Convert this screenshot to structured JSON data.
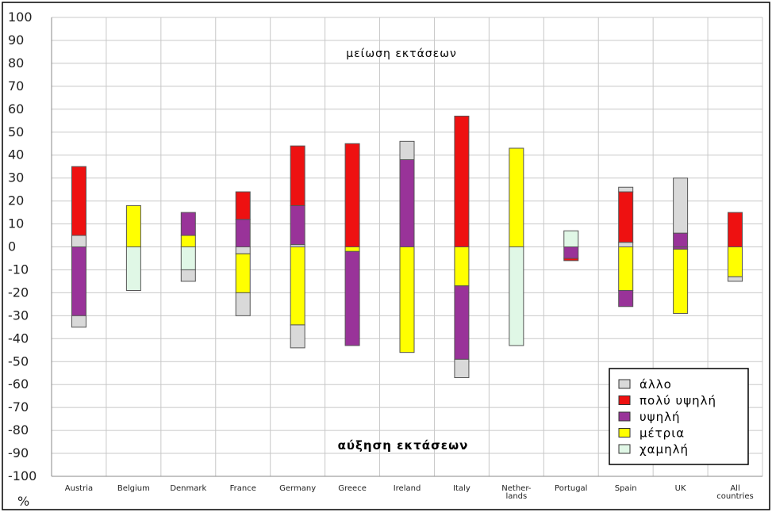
{
  "chart_data": {
    "type": "bar",
    "stacked": true,
    "ylabel": "%",
    "ylim": [
      -100,
      100
    ],
    "yticks": [
      100,
      90,
      80,
      70,
      60,
      50,
      40,
      30,
      20,
      10,
      0,
      -10,
      -20,
      -30,
      -40,
      -50,
      -60,
      -70,
      -80,
      -90,
      -100
    ],
    "grid": true,
    "categories": [
      [
        "Austria"
      ],
      [
        "Belgium"
      ],
      [
        "Denmark"
      ],
      [
        "France"
      ],
      [
        "Germany"
      ],
      [
        "Greece"
      ],
      [
        "Ireland"
      ],
      [
        "Italy"
      ],
      [
        "Nether-",
        "lands"
      ],
      [
        "Portugal"
      ],
      [
        "Spain"
      ],
      [
        "UK"
      ],
      [
        "All",
        "countries"
      ]
    ],
    "annotations": {
      "top": "μείωση εκτάσεων",
      "bottom": "αύξηση εκτάσεων"
    },
    "legend": {
      "position": "bottom-right",
      "items": [
        {
          "name": "άλλο",
          "color": "#d9d9d9"
        },
        {
          "name": "πολύ υψηλή",
          "color": "#ee1111"
        },
        {
          "name": "υψηλή",
          "color": "#993399"
        },
        {
          "name": "μέτρια",
          "color": "#ffff00"
        },
        {
          "name": "χαμηλή",
          "color": "#e0f7e6"
        }
      ]
    },
    "colors": {
      "άλλο": "#d9d9d9",
      "πολύ υψηλή": "#ee1111",
      "υψηλή": "#993399",
      "μέτρια": "#ffff00",
      "χαμηλή": "#e0f7e6"
    },
    "segments": [
      {
        "category": "Austria",
        "series": "άλλο",
        "from": 0,
        "to": 5
      },
      {
        "category": "Austria",
        "series": "πολύ υψηλή",
        "from": 5,
        "to": 35
      },
      {
        "category": "Austria",
        "series": "υψηλή",
        "from": -30,
        "to": 0
      },
      {
        "category": "Austria",
        "series": "άλλο",
        "from": -35,
        "to": -30
      },
      {
        "category": "Belgium",
        "series": "μέτρια",
        "from": 0,
        "to": 18
      },
      {
        "category": "Belgium",
        "series": "χαμηλή",
        "from": -19,
        "to": 0
      },
      {
        "category": "Denmark",
        "series": "μέτρια",
        "from": 0,
        "to": 5
      },
      {
        "category": "Denmark",
        "series": "υψηλή",
        "from": 5,
        "to": 15
      },
      {
        "category": "Denmark",
        "series": "χαμηλή",
        "from": -10,
        "to": 0
      },
      {
        "category": "Denmark",
        "series": "άλλο",
        "from": -15,
        "to": -10
      },
      {
        "category": "France",
        "series": "υψηλή",
        "from": 0,
        "to": 12
      },
      {
        "category": "France",
        "series": "πολύ υψηλή",
        "from": 12,
        "to": 24
      },
      {
        "category": "France",
        "series": "άλλο",
        "from": -3,
        "to": 0
      },
      {
        "category": "France",
        "series": "μέτρια",
        "from": -20,
        "to": -3
      },
      {
        "category": "France",
        "series": "άλλο",
        "from": -30,
        "to": -20
      },
      {
        "category": "Germany",
        "series": "άλλο",
        "from": 0,
        "to": 1
      },
      {
        "category": "Germany",
        "series": "υψηλή",
        "from": 1,
        "to": 18
      },
      {
        "category": "Germany",
        "series": "πολύ υψηλή",
        "from": 18,
        "to": 44
      },
      {
        "category": "Germany",
        "series": "μέτρια",
        "from": -34,
        "to": 0
      },
      {
        "category": "Germany",
        "series": "άλλο",
        "from": -44,
        "to": -34
      },
      {
        "category": "Greece",
        "series": "πολύ υψηλή",
        "from": 0,
        "to": 45
      },
      {
        "category": "Greece",
        "series": "μέτρια",
        "from": -2,
        "to": 0
      },
      {
        "category": "Greece",
        "series": "υψηλή",
        "from": -43,
        "to": -2
      },
      {
        "category": "Ireland",
        "series": "υψηλή",
        "from": 0,
        "to": 38
      },
      {
        "category": "Ireland",
        "series": "άλλο",
        "from": 38,
        "to": 46
      },
      {
        "category": "Ireland",
        "series": "μέτρια",
        "from": -46,
        "to": 0
      },
      {
        "category": "Italy",
        "series": "πολύ υψηλή",
        "from": 0,
        "to": 57
      },
      {
        "category": "Italy",
        "series": "μέτρια",
        "from": -17,
        "to": 0
      },
      {
        "category": "Italy",
        "series": "υψηλή",
        "from": -49,
        "to": -17
      },
      {
        "category": "Italy",
        "series": "άλλο",
        "from": -57,
        "to": -49
      },
      {
        "category": "Nether-lands",
        "series": "μέτρια",
        "from": 0,
        "to": 43
      },
      {
        "category": "Nether-lands",
        "series": "χαμηλή",
        "from": -43,
        "to": 0
      },
      {
        "category": "Portugal",
        "series": "χαμηλή",
        "from": 0,
        "to": 7
      },
      {
        "category": "Portugal",
        "series": "υψηλή",
        "from": -5,
        "to": 0
      },
      {
        "category": "Portugal",
        "series": "πολύ υψηλή",
        "from": -6,
        "to": -5
      },
      {
        "category": "Spain",
        "series": "άλλο",
        "from": 0,
        "to": 2
      },
      {
        "category": "Spain",
        "series": "πολύ υψηλή",
        "from": 2,
        "to": 24
      },
      {
        "category": "Spain",
        "series": "άλλο",
        "from": 24,
        "to": 26
      },
      {
        "category": "Spain",
        "series": "μέτρια",
        "from": -19,
        "to": 0
      },
      {
        "category": "Spain",
        "series": "υψηλή",
        "from": -26,
        "to": -19
      },
      {
        "category": "UK",
        "series": "υψηλή",
        "from": 0,
        "to": 6
      },
      {
        "category": "UK",
        "series": "άλλο",
        "from": 6,
        "to": 30
      },
      {
        "category": "UK",
        "series": "υψηλή",
        "from": -1,
        "to": 0
      },
      {
        "category": "UK",
        "series": "μέτρια",
        "from": -29,
        "to": -1
      },
      {
        "category": "All countries",
        "series": "πολύ υψηλή",
        "from": 0,
        "to": 15
      },
      {
        "category": "All countries",
        "series": "μέτρια",
        "from": -13,
        "to": 0
      },
      {
        "category": "All countries",
        "series": "άλλο",
        "from": -15,
        "to": -13
      }
    ]
  }
}
